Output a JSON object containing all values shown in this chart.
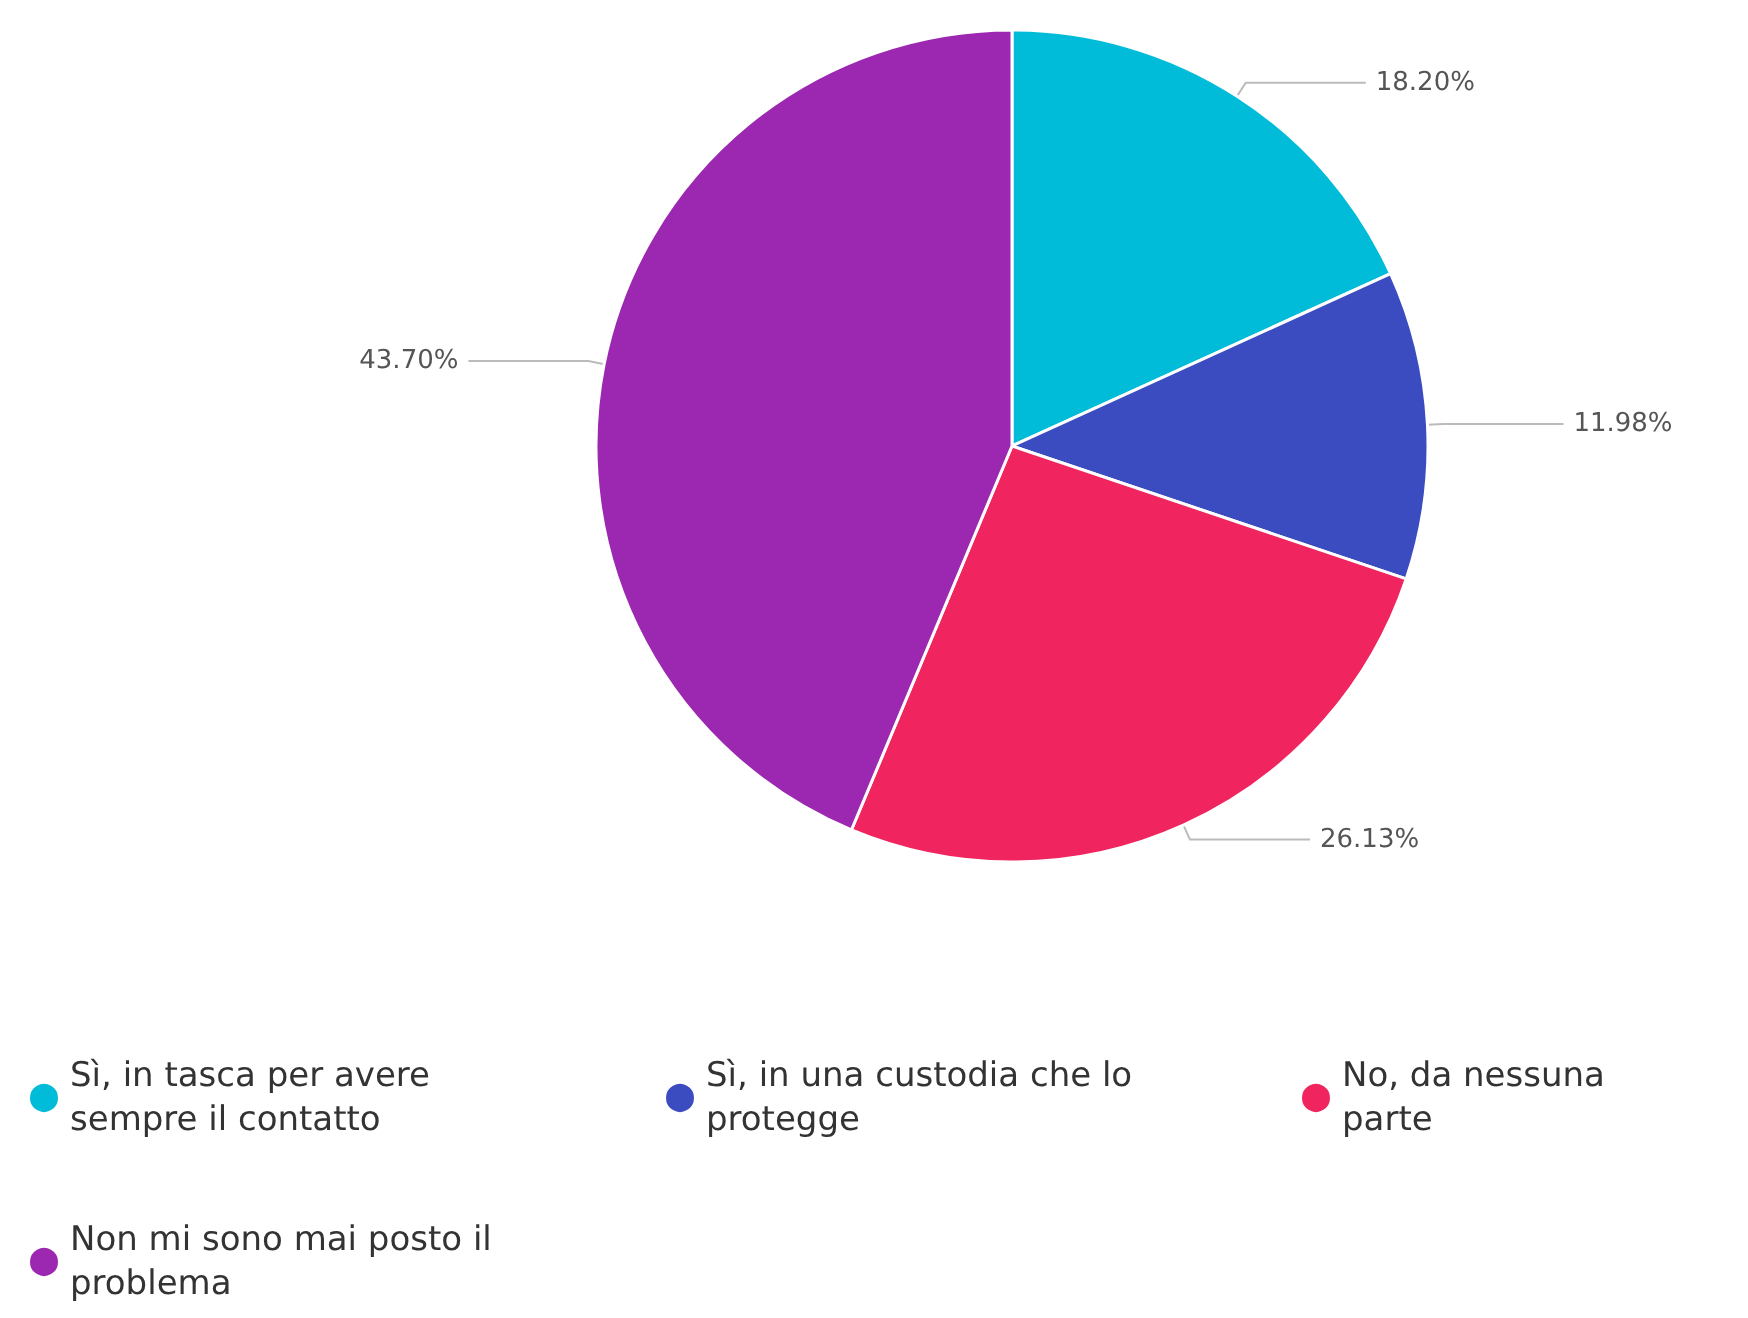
{
  "chart_data": {
    "type": "pie",
    "categories": [
      "Sì, in tasca per avere sempre il contatto",
      "Sì, in una custodia che lo protegge",
      "No, da nessuna parte",
      "Non mi sono mai posto il problema"
    ],
    "values": [
      18.2,
      11.98,
      26.13,
      43.7
    ],
    "value_labels": [
      "18.20%",
      "11.98%",
      "26.13%",
      "43.70%"
    ],
    "colors": [
      "#00bcd8",
      "#3b4cc0",
      "#f0245e",
      "#9c27b0"
    ],
    "legend": "bottom"
  }
}
